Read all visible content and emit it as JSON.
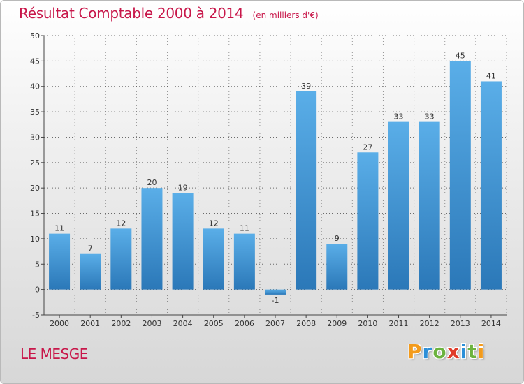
{
  "header": {
    "title": "Résultat Comptable 2000 à 2014",
    "subtitle": "(en milliers d'€)"
  },
  "footer": {
    "town": "LE MESGE",
    "logo_letters": [
      "P",
      "r",
      "o",
      "x",
      "i",
      "t",
      "i"
    ]
  },
  "colors": {
    "accent": "#c8174a",
    "bar_top": "#5aaee8",
    "bar_bottom": "#2b78b8",
    "grid": "#333333"
  },
  "chart_data": {
    "type": "bar",
    "title": "Résultat Comptable 2000 à 2014",
    "subtitle": "(en milliers d'€)",
    "categories": [
      "2000",
      "2001",
      "2002",
      "2003",
      "2004",
      "2005",
      "2006",
      "2007",
      "2008",
      "2009",
      "2010",
      "2011",
      "2012",
      "2013",
      "2014"
    ],
    "values": [
      11,
      7,
      12,
      20,
      19,
      12,
      11,
      -1,
      39,
      9,
      27,
      33,
      33,
      45,
      41
    ],
    "data_labels": [
      "11",
      "7",
      "12",
      "20",
      "19",
      "12",
      "11",
      "-1",
      "39",
      "9",
      "27",
      "33",
      "33",
      "45",
      "41"
    ],
    "ylim": [
      -5,
      50
    ],
    "yticks": [
      -5,
      0,
      5,
      10,
      15,
      20,
      25,
      30,
      35,
      40,
      45,
      50
    ],
    "grid": "dashed horizontal",
    "legend": "none"
  }
}
